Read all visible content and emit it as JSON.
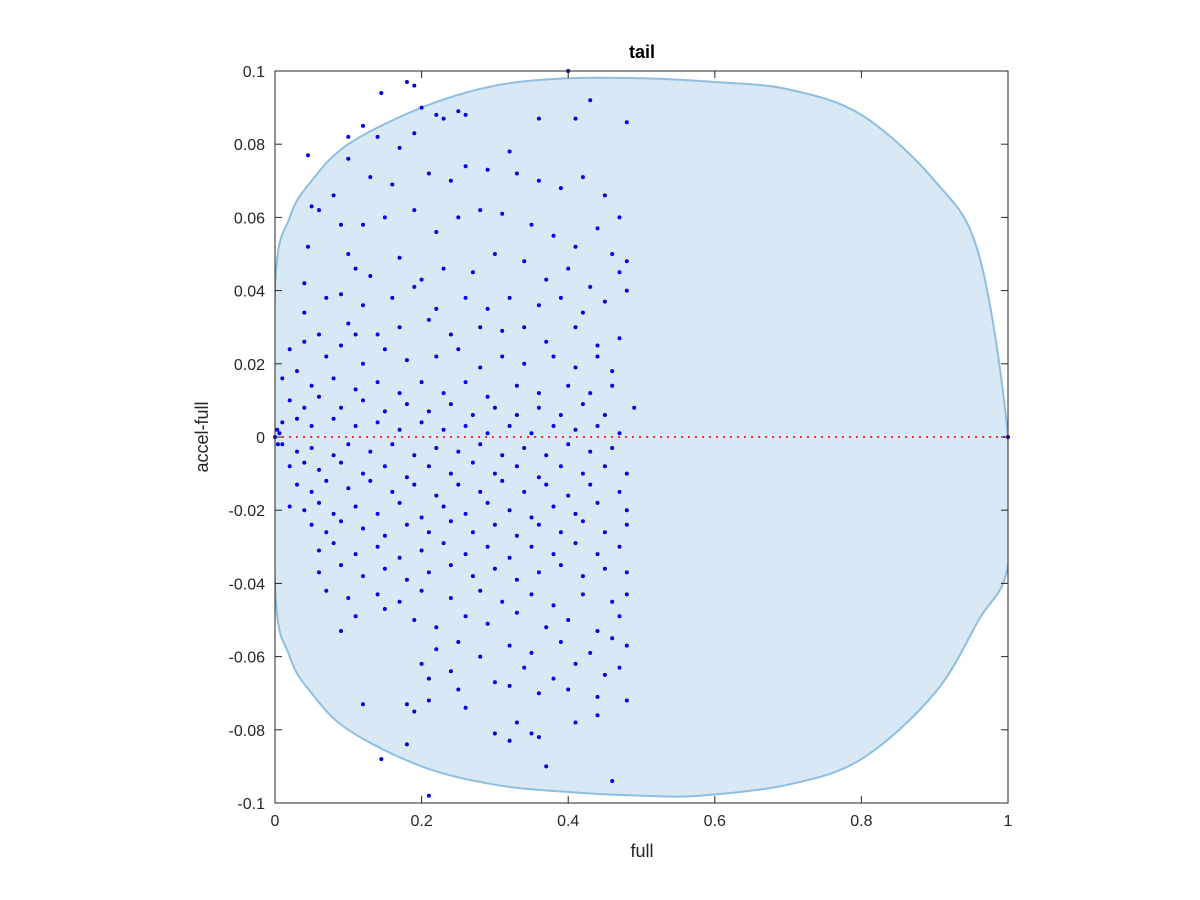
{
  "chart_data": {
    "type": "scatter",
    "title": "tail",
    "xlabel": "full",
    "ylabel": "accel-full",
    "xlim": [
      0,
      1
    ],
    "ylim": [
      -0.1,
      0.1
    ],
    "xticks": [
      "0",
      "0.2",
      "0.4",
      "0.6",
      "0.8",
      "1"
    ],
    "yticks": [
      "-0.1",
      "-0.08",
      "-0.06",
      "-0.04",
      "-0.02",
      "0",
      "0.02",
      "0.04",
      "0.06",
      "0.08",
      "0.1"
    ],
    "grid": false,
    "legend": "none",
    "colors": {
      "points": "#0000e6",
      "region_fill": "#d8e8f4",
      "region_edge": "#8fbfe0",
      "reference_line": "#ff3030",
      "axes": "#262626"
    },
    "region_boundary": [
      [
        0.0,
        0.04
      ],
      [
        0.0,
        -0.04
      ],
      [
        0.02,
        -0.06
      ],
      [
        0.05,
        -0.07
      ],
      [
        0.1,
        -0.08
      ],
      [
        0.2,
        -0.09
      ],
      [
        0.3,
        -0.095
      ],
      [
        0.4,
        -0.097
      ],
      [
        0.5,
        -0.098
      ],
      [
        0.58,
        -0.098
      ],
      [
        0.7,
        -0.095
      ],
      [
        0.8,
        -0.088
      ],
      [
        0.9,
        -0.07
      ],
      [
        0.96,
        -0.05
      ],
      [
        1.0,
        -0.035
      ],
      [
        1.0,
        0.0
      ],
      [
        0.96,
        0.05
      ],
      [
        0.9,
        0.07
      ],
      [
        0.8,
        0.088
      ],
      [
        0.7,
        0.095
      ],
      [
        0.6,
        0.097
      ],
      [
        0.5,
        0.098
      ],
      [
        0.4,
        0.098
      ],
      [
        0.3,
        0.096
      ],
      [
        0.2,
        0.09
      ],
      [
        0.1,
        0.08
      ],
      [
        0.05,
        0.07
      ],
      [
        0.02,
        0.06
      ]
    ],
    "reference_line": {
      "y": 0,
      "x": [
        0,
        1
      ]
    },
    "points": [
      [
        0.0,
        0.0
      ],
      [
        0.003,
        0.002
      ],
      [
        0.004,
        -0.002
      ],
      [
        0.006,
        0.001
      ],
      [
        1.0,
        0.0
      ],
      [
        0.4,
        0.1
      ],
      [
        0.18,
        0.097
      ],
      [
        0.19,
        0.096
      ],
      [
        0.145,
        0.094
      ],
      [
        0.43,
        0.092
      ],
      [
        0.25,
        0.089
      ],
      [
        0.26,
        0.088
      ],
      [
        0.22,
        0.088
      ],
      [
        0.23,
        0.087
      ],
      [
        0.2,
        0.09
      ],
      [
        0.36,
        0.087
      ],
      [
        0.41,
        0.087
      ],
      [
        0.48,
        0.086
      ],
      [
        0.1,
        0.082
      ],
      [
        0.14,
        0.082
      ],
      [
        0.12,
        0.085
      ],
      [
        0.19,
        0.083
      ],
      [
        0.17,
        0.079
      ],
      [
        0.045,
        0.077
      ],
      [
        0.32,
        0.078
      ],
      [
        0.1,
        0.076
      ],
      [
        0.08,
        0.066
      ],
      [
        0.05,
        0.063
      ],
      [
        0.06,
        0.062
      ],
      [
        0.13,
        0.071
      ],
      [
        0.16,
        0.069
      ],
      [
        0.21,
        0.072
      ],
      [
        0.24,
        0.07
      ],
      [
        0.26,
        0.074
      ],
      [
        0.29,
        0.073
      ],
      [
        0.33,
        0.072
      ],
      [
        0.36,
        0.07
      ],
      [
        0.39,
        0.068
      ],
      [
        0.42,
        0.071
      ],
      [
        0.45,
        0.066
      ],
      [
        0.47,
        0.06
      ],
      [
        0.09,
        0.058
      ],
      [
        0.12,
        0.058
      ],
      [
        0.15,
        0.06
      ],
      [
        0.19,
        0.062
      ],
      [
        0.22,
        0.056
      ],
      [
        0.25,
        0.06
      ],
      [
        0.28,
        0.062
      ],
      [
        0.31,
        0.061
      ],
      [
        0.35,
        0.058
      ],
      [
        0.38,
        0.055
      ],
      [
        0.41,
        0.052
      ],
      [
        0.44,
        0.057
      ],
      [
        0.46,
        0.05
      ],
      [
        0.48,
        0.048
      ],
      [
        0.045,
        0.052
      ],
      [
        0.1,
        0.05
      ],
      [
        0.11,
        0.046
      ],
      [
        0.13,
        0.044
      ],
      [
        0.17,
        0.049
      ],
      [
        0.2,
        0.043
      ],
      [
        0.23,
        0.046
      ],
      [
        0.27,
        0.045
      ],
      [
        0.3,
        0.05
      ],
      [
        0.34,
        0.048
      ],
      [
        0.37,
        0.043
      ],
      [
        0.4,
        0.046
      ],
      [
        0.43,
        0.041
      ],
      [
        0.47,
        0.045
      ],
      [
        0.04,
        0.042
      ],
      [
        0.07,
        0.038
      ],
      [
        0.09,
        0.039
      ],
      [
        0.12,
        0.036
      ],
      [
        0.16,
        0.038
      ],
      [
        0.19,
        0.041
      ],
      [
        0.22,
        0.035
      ],
      [
        0.26,
        0.038
      ],
      [
        0.29,
        0.035
      ],
      [
        0.32,
        0.038
      ],
      [
        0.36,
        0.036
      ],
      [
        0.39,
        0.038
      ],
      [
        0.42,
        0.034
      ],
      [
        0.45,
        0.037
      ],
      [
        0.48,
        0.04
      ],
      [
        0.04,
        0.034
      ],
      [
        0.06,
        0.028
      ],
      [
        0.1,
        0.031
      ],
      [
        0.11,
        0.028
      ],
      [
        0.14,
        0.028
      ],
      [
        0.17,
        0.03
      ],
      [
        0.21,
        0.032
      ],
      [
        0.24,
        0.028
      ],
      [
        0.28,
        0.03
      ],
      [
        0.31,
        0.029
      ],
      [
        0.34,
        0.03
      ],
      [
        0.37,
        0.026
      ],
      [
        0.41,
        0.03
      ],
      [
        0.44,
        0.025
      ],
      [
        0.47,
        0.027
      ],
      [
        0.02,
        0.024
      ],
      [
        0.04,
        0.026
      ],
      [
        0.07,
        0.022
      ],
      [
        0.09,
        0.025
      ],
      [
        0.12,
        0.02
      ],
      [
        0.15,
        0.024
      ],
      [
        0.18,
        0.021
      ],
      [
        0.22,
        0.022
      ],
      [
        0.25,
        0.024
      ],
      [
        0.28,
        0.019
      ],
      [
        0.31,
        0.022
      ],
      [
        0.34,
        0.02
      ],
      [
        0.38,
        0.022
      ],
      [
        0.41,
        0.019
      ],
      [
        0.44,
        0.022
      ],
      [
        0.46,
        0.018
      ],
      [
        0.01,
        0.016
      ],
      [
        0.03,
        0.018
      ],
      [
        0.05,
        0.014
      ],
      [
        0.08,
        0.016
      ],
      [
        0.11,
        0.013
      ],
      [
        0.14,
        0.015
      ],
      [
        0.17,
        0.012
      ],
      [
        0.2,
        0.015
      ],
      [
        0.23,
        0.012
      ],
      [
        0.26,
        0.015
      ],
      [
        0.29,
        0.011
      ],
      [
        0.33,
        0.014
      ],
      [
        0.36,
        0.012
      ],
      [
        0.4,
        0.014
      ],
      [
        0.43,
        0.012
      ],
      [
        0.46,
        0.014
      ],
      [
        0.02,
        0.01
      ],
      [
        0.04,
        0.008
      ],
      [
        0.06,
        0.011
      ],
      [
        0.09,
        0.008
      ],
      [
        0.12,
        0.01
      ],
      [
        0.15,
        0.007
      ],
      [
        0.18,
        0.009
      ],
      [
        0.21,
        0.007
      ],
      [
        0.24,
        0.009
      ],
      [
        0.27,
        0.006
      ],
      [
        0.3,
        0.008
      ],
      [
        0.33,
        0.006
      ],
      [
        0.36,
        0.008
      ],
      [
        0.39,
        0.006
      ],
      [
        0.42,
        0.009
      ],
      [
        0.45,
        0.006
      ],
      [
        0.49,
        0.008
      ],
      [
        0.01,
        0.004
      ],
      [
        0.03,
        0.005
      ],
      [
        0.05,
        0.003
      ],
      [
        0.08,
        0.005
      ],
      [
        0.11,
        0.003
      ],
      [
        0.14,
        0.004
      ],
      [
        0.17,
        0.002
      ],
      [
        0.2,
        0.004
      ],
      [
        0.23,
        0.002
      ],
      [
        0.26,
        0.003
      ],
      [
        0.29,
        0.001
      ],
      [
        0.32,
        0.003
      ],
      [
        0.35,
        0.001
      ],
      [
        0.38,
        0.003
      ],
      [
        0.41,
        0.002
      ],
      [
        0.44,
        0.003
      ],
      [
        0.47,
        0.001
      ],
      [
        0.01,
        -0.002
      ],
      [
        0.03,
        -0.004
      ],
      [
        0.05,
        -0.003
      ],
      [
        0.08,
        -0.005
      ],
      [
        0.1,
        -0.002
      ],
      [
        0.13,
        -0.004
      ],
      [
        0.16,
        -0.002
      ],
      [
        0.19,
        -0.005
      ],
      [
        0.22,
        -0.003
      ],
      [
        0.25,
        -0.004
      ],
      [
        0.28,
        -0.002
      ],
      [
        0.31,
        -0.005
      ],
      [
        0.34,
        -0.003
      ],
      [
        0.37,
        -0.005
      ],
      [
        0.4,
        -0.002
      ],
      [
        0.43,
        -0.004
      ],
      [
        0.46,
        -0.003
      ],
      [
        0.02,
        -0.008
      ],
      [
        0.04,
        -0.007
      ],
      [
        0.06,
        -0.009
      ],
      [
        0.09,
        -0.007
      ],
      [
        0.12,
        -0.01
      ],
      [
        0.15,
        -0.008
      ],
      [
        0.18,
        -0.011
      ],
      [
        0.21,
        -0.008
      ],
      [
        0.24,
        -0.01
      ],
      [
        0.27,
        -0.007
      ],
      [
        0.3,
        -0.01
      ],
      [
        0.33,
        -0.008
      ],
      [
        0.36,
        -0.011
      ],
      [
        0.39,
        -0.008
      ],
      [
        0.42,
        -0.01
      ],
      [
        0.45,
        -0.008
      ],
      [
        0.48,
        -0.01
      ],
      [
        0.03,
        -0.013
      ],
      [
        0.05,
        -0.015
      ],
      [
        0.07,
        -0.012
      ],
      [
        0.1,
        -0.014
      ],
      [
        0.13,
        -0.012
      ],
      [
        0.16,
        -0.015
      ],
      [
        0.19,
        -0.013
      ],
      [
        0.22,
        -0.016
      ],
      [
        0.25,
        -0.013
      ],
      [
        0.28,
        -0.015
      ],
      [
        0.31,
        -0.012
      ],
      [
        0.34,
        -0.015
      ],
      [
        0.37,
        -0.013
      ],
      [
        0.4,
        -0.016
      ],
      [
        0.43,
        -0.013
      ],
      [
        0.47,
        -0.015
      ],
      [
        0.02,
        -0.019
      ],
      [
        0.04,
        -0.02
      ],
      [
        0.06,
        -0.018
      ],
      [
        0.08,
        -0.021
      ],
      [
        0.11,
        -0.019
      ],
      [
        0.14,
        -0.021
      ],
      [
        0.17,
        -0.018
      ],
      [
        0.2,
        -0.022
      ],
      [
        0.23,
        -0.019
      ],
      [
        0.26,
        -0.021
      ],
      [
        0.29,
        -0.018
      ],
      [
        0.32,
        -0.02
      ],
      [
        0.35,
        -0.022
      ],
      [
        0.38,
        -0.019
      ],
      [
        0.41,
        -0.021
      ],
      [
        0.44,
        -0.018
      ],
      [
        0.48,
        -0.02
      ],
      [
        0.05,
        -0.024
      ],
      [
        0.07,
        -0.026
      ],
      [
        0.09,
        -0.023
      ],
      [
        0.12,
        -0.025
      ],
      [
        0.15,
        -0.027
      ],
      [
        0.18,
        -0.024
      ],
      [
        0.21,
        -0.026
      ],
      [
        0.24,
        -0.023
      ],
      [
        0.27,
        -0.026
      ],
      [
        0.3,
        -0.024
      ],
      [
        0.33,
        -0.027
      ],
      [
        0.36,
        -0.024
      ],
      [
        0.39,
        -0.026
      ],
      [
        0.42,
        -0.023
      ],
      [
        0.45,
        -0.026
      ],
      [
        0.48,
        -0.024
      ],
      [
        0.06,
        -0.031
      ],
      [
        0.08,
        -0.029
      ],
      [
        0.11,
        -0.032
      ],
      [
        0.14,
        -0.03
      ],
      [
        0.17,
        -0.033
      ],
      [
        0.2,
        -0.031
      ],
      [
        0.23,
        -0.029
      ],
      [
        0.26,
        -0.032
      ],
      [
        0.29,
        -0.03
      ],
      [
        0.32,
        -0.033
      ],
      [
        0.35,
        -0.03
      ],
      [
        0.38,
        -0.032
      ],
      [
        0.41,
        -0.029
      ],
      [
        0.44,
        -0.032
      ],
      [
        0.47,
        -0.03
      ],
      [
        0.06,
        -0.037
      ],
      [
        0.09,
        -0.035
      ],
      [
        0.12,
        -0.038
      ],
      [
        0.15,
        -0.036
      ],
      [
        0.18,
        -0.039
      ],
      [
        0.21,
        -0.037
      ],
      [
        0.24,
        -0.035
      ],
      [
        0.27,
        -0.038
      ],
      [
        0.3,
        -0.036
      ],
      [
        0.33,
        -0.039
      ],
      [
        0.36,
        -0.037
      ],
      [
        0.39,
        -0.035
      ],
      [
        0.42,
        -0.038
      ],
      [
        0.45,
        -0.036
      ],
      [
        0.48,
        -0.037
      ],
      [
        0.07,
        -0.042
      ],
      [
        0.1,
        -0.044
      ],
      [
        0.14,
        -0.043
      ],
      [
        0.17,
        -0.045
      ],
      [
        0.2,
        -0.042
      ],
      [
        0.24,
        -0.044
      ],
      [
        0.28,
        -0.042
      ],
      [
        0.31,
        -0.045
      ],
      [
        0.35,
        -0.043
      ],
      [
        0.38,
        -0.046
      ],
      [
        0.42,
        -0.043
      ],
      [
        0.46,
        -0.045
      ],
      [
        0.48,
        -0.043
      ],
      [
        0.09,
        -0.053
      ],
      [
        0.11,
        -0.049
      ],
      [
        0.15,
        -0.047
      ],
      [
        0.19,
        -0.05
      ],
      [
        0.22,
        -0.052
      ],
      [
        0.26,
        -0.049
      ],
      [
        0.29,
        -0.051
      ],
      [
        0.33,
        -0.048
      ],
      [
        0.37,
        -0.052
      ],
      [
        0.4,
        -0.05
      ],
      [
        0.44,
        -0.053
      ],
      [
        0.47,
        -0.049
      ],
      [
        0.22,
        -0.058
      ],
      [
        0.25,
        -0.056
      ],
      [
        0.28,
        -0.06
      ],
      [
        0.32,
        -0.057
      ],
      [
        0.35,
        -0.059
      ],
      [
        0.39,
        -0.056
      ],
      [
        0.43,
        -0.059
      ],
      [
        0.46,
        -0.055
      ],
      [
        0.48,
        -0.057
      ],
      [
        0.2,
        -0.062
      ],
      [
        0.24,
        -0.064
      ],
      [
        0.3,
        -0.067
      ],
      [
        0.34,
        -0.063
      ],
      [
        0.38,
        -0.066
      ],
      [
        0.41,
        -0.062
      ],
      [
        0.45,
        -0.065
      ],
      [
        0.47,
        -0.063
      ],
      [
        0.21,
        -0.066
      ],
      [
        0.25,
        -0.069
      ],
      [
        0.32,
        -0.068
      ],
      [
        0.36,
        -0.07
      ],
      [
        0.4,
        -0.069
      ],
      [
        0.44,
        -0.071
      ],
      [
        0.48,
        -0.072
      ],
      [
        0.12,
        -0.073
      ],
      [
        0.18,
        -0.073
      ],
      [
        0.19,
        -0.075
      ],
      [
        0.21,
        -0.072
      ],
      [
        0.26,
        -0.074
      ],
      [
        0.33,
        -0.078
      ],
      [
        0.35,
        -0.081
      ],
      [
        0.41,
        -0.078
      ],
      [
        0.44,
        -0.076
      ],
      [
        0.3,
        -0.081
      ],
      [
        0.32,
        -0.083
      ],
      [
        0.36,
        -0.082
      ],
      [
        0.18,
        -0.084
      ],
      [
        0.145,
        -0.088
      ],
      [
        0.37,
        -0.09
      ],
      [
        0.46,
        -0.094
      ],
      [
        0.21,
        -0.098
      ]
    ]
  }
}
